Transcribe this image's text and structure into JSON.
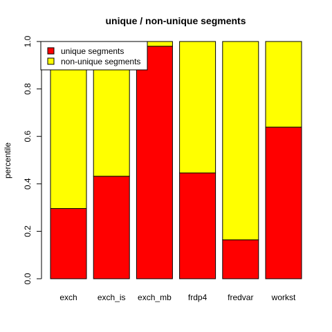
{
  "chart_data": {
    "type": "bar",
    "stacked": true,
    "title": "unique / non-unique segments",
    "xlabel": "",
    "ylabel": "percentile",
    "ylim": [
      0,
      1
    ],
    "yticks": [
      "0.0",
      "0.2",
      "0.4",
      "0.6",
      "0.8",
      "1.0"
    ],
    "categories": [
      "exch",
      "exch_is",
      "exch_mb",
      "frdp4",
      "fredvar",
      "workst"
    ],
    "series": [
      {
        "name": "unique segments",
        "color": "#ff0000",
        "values": [
          0.296,
          0.432,
          0.98,
          0.446,
          0.164,
          0.639
        ]
      },
      {
        "name": "non-unique segments",
        "color": "#ffff00",
        "values": [
          0.704,
          0.568,
          0.02,
          0.554,
          0.836,
          0.361
        ]
      }
    ],
    "legend": "top-left",
    "grid": false
  }
}
